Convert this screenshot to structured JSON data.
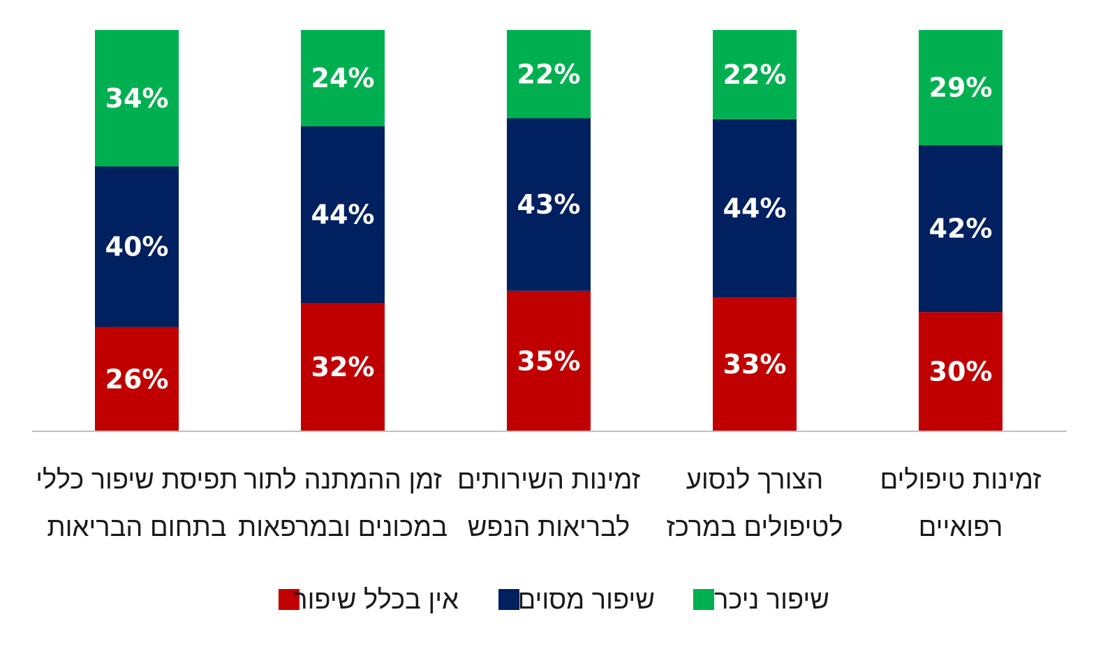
{
  "chart_data": {
    "type": "bar",
    "stacked": true,
    "orientation": "vertical",
    "direction": "rtl",
    "categories": [
      [
        "זמינות טיפולים",
        "רפואיים"
      ],
      [
        "הצורך לנסוע",
        "לטיפולים במרכז"
      ],
      [
        "זמינות השירותים",
        "לבריאות הנפש"
      ],
      [
        "זמן ההמתנה לתור",
        "במכונים ובמרפאות"
      ],
      [
        "תפיסת שיפור כללי",
        "בתחום הבריאות"
      ]
    ],
    "series": [
      {
        "name": "אין בכלל שיפור",
        "color": "#C00000",
        "values": [
          30,
          33,
          35,
          32,
          26
        ]
      },
      {
        "name": "שיפור מסוים",
        "color": "#002060",
        "values": [
          42,
          44,
          43,
          44,
          40
        ]
      },
      {
        "name": "שיפור ניכר",
        "color": "#00B050",
        "values": [
          29,
          22,
          22,
          24,
          34
        ]
      }
    ],
    "value_suffix": "%",
    "ylim": [
      0,
      100
    ],
    "grid": false,
    "legend_position": "bottom"
  }
}
